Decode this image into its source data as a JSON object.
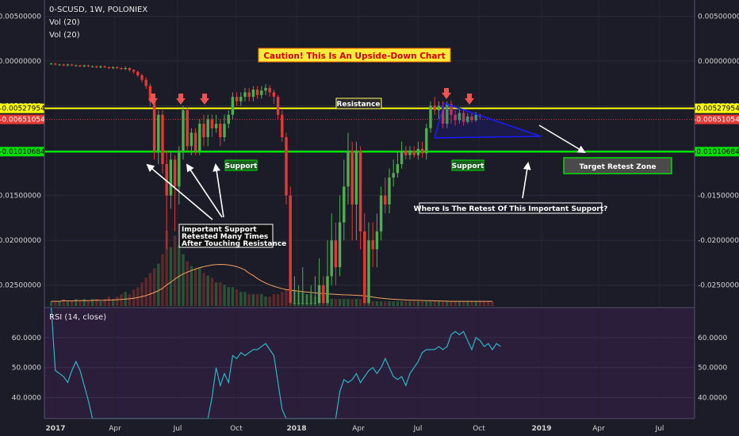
{
  "header": {
    "title": "0-SCUSD, 1W, POLONIEX",
    "indicator_1": "Vol (20)",
    "indicator_2": "Vol (20)"
  },
  "colors": {
    "background": "#1c1b28",
    "rsi_background": "#2a1e3a",
    "bull_candle": "#4caf50",
    "bear_candle": "#e53935",
    "resistance_line": "#ffff00",
    "support_line": "#00e000",
    "current_price_line": "#e53935",
    "rsi_line": "#29b6c8",
    "volume_ma": "#f4a261",
    "triangle": "#1a1aff",
    "marker_arrow": "#ef5350"
  },
  "chart_data": [
    {
      "type": "candlestick",
      "title": "0-SCUSD, 1W, POLONIEX",
      "x_ticks": [
        "2017",
        "Apr",
        "Jul",
        "Oct",
        "2018",
        "Apr",
        "Jul",
        "Oct",
        "2019",
        "Apr",
        "Jul"
      ],
      "y_ticks": [
        "0.00500000",
        "0.00000000",
        "-0.00500000",
        "-0.01000000",
        "-0.01500000",
        "-0.02000000",
        "-0.02500000"
      ],
      "ylim": [
        -0.0275,
        0.0068
      ],
      "price_labels": {
        "resistance": "-0.00527954",
        "current": "-0.00651054",
        "support": "-0.01010684"
      },
      "levels": {
        "resistance": -0.00527954,
        "current": -0.00651054,
        "support": -0.01010684
      },
      "candles": [
        {
          "o": -0.0003,
          "c": -0.0003,
          "h": -0.0002,
          "l": -0.0004
        },
        {
          "o": -0.0003,
          "c": -0.0004,
          "h": -0.0002,
          "l": -0.0005
        },
        {
          "o": -0.0004,
          "c": -0.0004,
          "h": -0.0003,
          "l": -0.0005
        },
        {
          "o": -0.0004,
          "c": -0.0005,
          "h": -0.0003,
          "l": -0.0006
        },
        {
          "o": -0.0005,
          "c": -0.0004,
          "h": -0.0003,
          "l": -0.0006
        },
        {
          "o": -0.0004,
          "c": -0.0005,
          "h": -0.0003,
          "l": -0.0006
        },
        {
          "o": -0.0005,
          "c": -0.0005,
          "h": -0.0004,
          "l": -0.0006
        },
        {
          "o": -0.0005,
          "c": -0.0006,
          "h": -0.0004,
          "l": -0.0007
        },
        {
          "o": -0.0006,
          "c": -0.0005,
          "h": -0.0004,
          "l": -0.0007
        },
        {
          "o": -0.0005,
          "c": -0.0006,
          "h": -0.0004,
          "l": -0.0007
        },
        {
          "o": -0.0006,
          "c": -0.0006,
          "h": -0.0005,
          "l": -0.0007
        },
        {
          "o": -0.0006,
          "c": -0.0007,
          "h": -0.0005,
          "l": -0.0008
        },
        {
          "o": -0.0007,
          "c": -0.0006,
          "h": -0.0005,
          "l": -0.0008
        },
        {
          "o": -0.0006,
          "c": -0.0007,
          "h": -0.0005,
          "l": -0.0008
        },
        {
          "o": -0.0007,
          "c": -0.0008,
          "h": -0.0006,
          "l": -0.0009
        },
        {
          "o": -0.0008,
          "c": -0.0007,
          "h": -0.0006,
          "l": -0.0009
        },
        {
          "o": -0.0007,
          "c": -0.0008,
          "h": -0.0006,
          "l": -0.0009
        },
        {
          "o": -0.0008,
          "c": -0.0009,
          "h": -0.0007,
          "l": -0.001
        },
        {
          "o": -0.0009,
          "c": -0.0008,
          "h": -0.0006,
          "l": -0.001
        },
        {
          "o": -0.0008,
          "c": -0.001,
          "h": -0.0007,
          "l": -0.0012
        },
        {
          "o": -0.001,
          "c": -0.0012,
          "h": -0.0009,
          "l": -0.0014
        },
        {
          "o": -0.0012,
          "c": -0.0016,
          "h": -0.0011,
          "l": -0.0018
        },
        {
          "o": -0.0016,
          "c": -0.0021,
          "h": -0.0014,
          "l": -0.0024
        },
        {
          "o": -0.0021,
          "c": -0.0028,
          "h": -0.0018,
          "l": -0.0031
        },
        {
          "o": -0.0028,
          "c": -0.0045,
          "h": -0.0025,
          "l": -0.005
        },
        {
          "o": -0.0045,
          "c": -0.01,
          "h": -0.004,
          "l": -0.011
        },
        {
          "o": -0.01,
          "c": -0.006,
          "h": -0.0055,
          "l": -0.0115
        },
        {
          "o": -0.006,
          "c": -0.0115,
          "h": -0.0055,
          "l": -0.0125
        },
        {
          "o": -0.0115,
          "c": -0.015,
          "h": -0.01,
          "l": -0.021
        },
        {
          "o": -0.015,
          "c": -0.011,
          "h": -0.01,
          "l": -0.0165
        },
        {
          "o": -0.011,
          "c": -0.014,
          "h": -0.0105,
          "l": -0.019
        },
        {
          "o": -0.014,
          "c": -0.01,
          "h": -0.0095,
          "l": -0.016
        },
        {
          "o": -0.01,
          "c": -0.0055,
          "h": -0.005,
          "l": -0.011
        },
        {
          "o": -0.0055,
          "c": -0.0095,
          "h": -0.0052,
          "l": -0.01
        },
        {
          "o": -0.0095,
          "c": -0.008,
          "h": -0.0075,
          "l": -0.0105
        },
        {
          "o": -0.008,
          "c": -0.01,
          "h": -0.0075,
          "l": -0.0105
        },
        {
          "o": -0.01,
          "c": -0.007,
          "h": -0.0065,
          "l": -0.0105
        },
        {
          "o": -0.007,
          "c": -0.0085,
          "h": -0.006,
          "l": -0.0095
        },
        {
          "o": -0.0085,
          "c": -0.0065,
          "h": -0.006,
          "l": -0.0095
        },
        {
          "o": -0.0065,
          "c": -0.0075,
          "h": -0.006,
          "l": -0.0085
        },
        {
          "o": -0.0075,
          "c": -0.007,
          "h": -0.006,
          "l": -0.008
        },
        {
          "o": -0.007,
          "c": -0.0085,
          "h": -0.0065,
          "l": -0.0095
        },
        {
          "o": -0.0085,
          "c": -0.007,
          "h": -0.006,
          "l": -0.009
        },
        {
          "o": -0.007,
          "c": -0.006,
          "h": -0.0055,
          "l": -0.0075
        },
        {
          "o": -0.006,
          "c": -0.004,
          "h": -0.0035,
          "l": -0.0065
        },
        {
          "o": -0.004,
          "c": -0.0045,
          "h": -0.0035,
          "l": -0.005
        },
        {
          "o": -0.0045,
          "c": -0.004,
          "h": -0.0035,
          "l": -0.005
        },
        {
          "o": -0.004,
          "c": -0.0035,
          "h": -0.003,
          "l": -0.0045
        },
        {
          "o": -0.0035,
          "c": -0.004,
          "h": -0.003,
          "l": -0.0045
        },
        {
          "o": -0.004,
          "c": -0.0032,
          "h": -0.0028,
          "l": -0.0045
        },
        {
          "o": -0.0032,
          "c": -0.0038,
          "h": -0.0028,
          "l": -0.0042
        },
        {
          "o": -0.0038,
          "c": -0.0033,
          "h": -0.0028,
          "l": -0.0042
        },
        {
          "o": -0.0033,
          "c": -0.003,
          "h": -0.0026,
          "l": -0.0038
        },
        {
          "o": -0.003,
          "c": -0.0035,
          "h": -0.0027,
          "l": -0.004
        },
        {
          "o": -0.0035,
          "c": -0.004,
          "h": -0.0032,
          "l": -0.0048
        },
        {
          "o": -0.004,
          "c": -0.006,
          "h": -0.0038,
          "l": -0.0065
        },
        {
          "o": -0.006,
          "c": -0.0085,
          "h": -0.0055,
          "l": -0.009
        },
        {
          "o": -0.0085,
          "c": -0.015,
          "h": -0.008,
          "l": -0.016
        },
        {
          "o": -0.015,
          "c": -0.027,
          "h": -0.014,
          "l": -0.027
        },
        {
          "o": -0.027,
          "c": -0.027,
          "h": -0.024,
          "l": -0.027
        },
        {
          "o": -0.027,
          "c": -0.027,
          "h": -0.025,
          "l": -0.027
        },
        {
          "o": -0.027,
          "c": -0.027,
          "h": -0.023,
          "l": -0.027
        },
        {
          "o": -0.027,
          "c": -0.027,
          "h": -0.026,
          "l": -0.027
        },
        {
          "o": -0.027,
          "c": -0.027,
          "h": -0.025,
          "l": -0.027
        },
        {
          "o": -0.027,
          "c": -0.027,
          "h": -0.024,
          "l": -0.027
        },
        {
          "o": -0.027,
          "c": -0.025,
          "h": -0.022,
          "l": -0.027
        },
        {
          "o": -0.025,
          "c": -0.027,
          "h": -0.024,
          "l": -0.027
        },
        {
          "o": -0.027,
          "c": -0.024,
          "h": -0.02,
          "l": -0.027
        },
        {
          "o": -0.024,
          "c": -0.02,
          "h": -0.017,
          "l": -0.025
        },
        {
          "o": -0.02,
          "c": -0.023,
          "h": -0.018,
          "l": -0.025
        },
        {
          "o": -0.023,
          "c": -0.018,
          "h": -0.015,
          "l": -0.024
        },
        {
          "o": -0.018,
          "c": -0.014,
          "h": -0.011,
          "l": -0.02
        },
        {
          "o": -0.014,
          "c": -0.01,
          "h": -0.008,
          "l": -0.016
        },
        {
          "o": -0.01,
          "c": -0.016,
          "h": -0.009,
          "l": -0.02
        },
        {
          "o": -0.016,
          "c": -0.01,
          "h": -0.009,
          "l": -0.02
        },
        {
          "o": -0.01,
          "c": -0.019,
          "h": -0.0095,
          "l": -0.021
        },
        {
          "o": -0.019,
          "c": -0.027,
          "h": -0.017,
          "l": -0.027
        },
        {
          "o": -0.027,
          "c": -0.02,
          "h": -0.018,
          "l": -0.027
        },
        {
          "o": -0.02,
          "c": -0.021,
          "h": -0.018,
          "l": -0.023
        },
        {
          "o": -0.021,
          "c": -0.019,
          "h": -0.017,
          "l": -0.023
        },
        {
          "o": -0.019,
          "c": -0.015,
          "h": -0.014,
          "l": -0.02
        },
        {
          "o": -0.015,
          "c": -0.016,
          "h": -0.013,
          "l": -0.017
        },
        {
          "o": -0.016,
          "c": -0.013,
          "h": -0.012,
          "l": -0.017
        },
        {
          "o": -0.013,
          "c": -0.0125,
          "h": -0.011,
          "l": -0.014
        },
        {
          "o": -0.0125,
          "c": -0.0115,
          "h": -0.01,
          "l": -0.013
        },
        {
          "o": -0.0115,
          "c": -0.01,
          "h": -0.009,
          "l": -0.012
        },
        {
          "o": -0.01,
          "c": -0.0105,
          "h": -0.0095,
          "l": -0.011
        },
        {
          "o": -0.0105,
          "c": -0.01,
          "h": -0.0095,
          "l": -0.011
        },
        {
          "o": -0.01,
          "c": -0.0105,
          "h": -0.0095,
          "l": -0.0108
        },
        {
          "o": -0.0105,
          "c": -0.0098,
          "h": -0.009,
          "l": -0.011
        },
        {
          "o": -0.0098,
          "c": -0.0103,
          "h": -0.009,
          "l": -0.0108
        },
        {
          "o": -0.0103,
          "c": -0.0075,
          "h": -0.007,
          "l": -0.011
        },
        {
          "o": -0.0075,
          "c": -0.005,
          "h": -0.0045,
          "l": -0.008
        },
        {
          "o": -0.005,
          "c": -0.0055,
          "h": -0.004,
          "l": -0.006
        },
        {
          "o": -0.0055,
          "c": -0.005,
          "h": -0.0045,
          "l": -0.0065
        },
        {
          "o": -0.005,
          "c": -0.007,
          "h": -0.0045,
          "l": -0.0075
        },
        {
          "o": -0.007,
          "c": -0.0048,
          "h": -0.0045,
          "l": -0.0075
        },
        {
          "o": -0.0048,
          "c": -0.006,
          "h": -0.0044,
          "l": -0.007
        },
        {
          "o": -0.006,
          "c": -0.0066,
          "h": -0.0055,
          "l": -0.0072
        },
        {
          "o": -0.0066,
          "c": -0.0058,
          "h": -0.0054,
          "l": -0.007
        },
        {
          "o": -0.0058,
          "c": -0.0068,
          "h": -0.0055,
          "l": -0.0072
        },
        {
          "o": -0.0068,
          "c": -0.0062,
          "h": -0.0058,
          "l": -0.007
        },
        {
          "o": -0.0062,
          "c": -0.0066,
          "h": -0.0058,
          "l": -0.0069
        },
        {
          "o": -0.0066,
          "c": -0.006,
          "h": -0.0057,
          "l": -0.0068
        },
        {
          "o": -0.006,
          "c": -0.0062,
          "h": -0.0059,
          "l": -0.0065
        }
      ],
      "volume": [
        0.2,
        0.2,
        0.2,
        0.3,
        0.2,
        0.2,
        0.3,
        0.2,
        0.3,
        0.2,
        0.3,
        0.3,
        0.2,
        0.3,
        0.4,
        0.3,
        0.4,
        0.5,
        0.6,
        0.5,
        0.7,
        0.8,
        1.0,
        1.2,
        1.4,
        1.6,
        1.8,
        2.2,
        3.2,
        2.5,
        3.0,
        2.6,
        2.2,
        1.9,
        1.7,
        1.6,
        1.6,
        1.4,
        1.3,
        1.2,
        1.0,
        1.0,
        0.9,
        0.8,
        0.8,
        0.7,
        0.6,
        0.6,
        0.5,
        0.5,
        0.5,
        0.5,
        0.4,
        0.4,
        0.5,
        0.5,
        0.6,
        0.7,
        0.8,
        0.7,
        0.6,
        0.6,
        0.5,
        0.5,
        0.4,
        0.4,
        0.4,
        0.3,
        0.3,
        0.3,
        0.3,
        0.3,
        0.3,
        0.3,
        0.3,
        0.3,
        0.3,
        0.3,
        0.2,
        0.2,
        0.2,
        0.2,
        0.2,
        0.2,
        0.2,
        0.2,
        0.2,
        0.2,
        0.2,
        0.2,
        0.2,
        0.2,
        0.2,
        0.2,
        0.2,
        0.2,
        0.2,
        0.2,
        0.2,
        0.2,
        0.2,
        0.2,
        0.2,
        0.2,
        0.2,
        0.2,
        0.2,
        0.2
      ],
      "annotations": {
        "caution": "Caution! This Is An Upside-Down Chart",
        "resistance": "Resistance",
        "support_left": "Support",
        "support_right": "Support",
        "target": "Target Retest Zone",
        "retest_question": "Where Is The Retest Of This Important Support?",
        "important_support_lines": [
          "Important Support",
          "Retested Many Times",
          "After Touching Resistance"
        ]
      }
    },
    {
      "type": "line",
      "title": "RSI (14, close)",
      "y_ticks": [
        "60.0000",
        "50.0000",
        "40.0000"
      ],
      "ylim": [
        33,
        70
      ],
      "rsi_values": [
        70,
        49,
        48,
        47,
        45,
        49,
        52,
        49,
        44,
        39,
        28,
        28,
        30,
        30,
        30,
        30,
        30,
        30,
        30,
        30,
        30,
        30,
        30,
        30,
        30,
        30,
        30,
        30,
        30,
        30,
        30,
        30,
        30,
        30,
        30,
        30,
        30,
        30,
        30,
        40,
        50,
        44,
        48,
        45,
        54,
        53,
        55,
        54,
        55,
        56,
        56,
        57,
        58,
        56,
        54,
        45,
        36,
        30,
        30,
        30,
        30,
        30,
        30,
        30,
        30,
        30,
        30,
        30,
        30,
        33,
        42,
        46,
        45,
        46,
        48,
        45,
        47,
        49,
        50,
        48,
        50,
        53,
        50,
        47,
        46,
        47,
        44,
        48,
        50,
        52,
        55,
        56,
        56,
        56,
        57,
        56,
        57,
        61,
        62,
        61,
        62,
        59,
        56,
        60,
        59,
        57,
        58,
        56,
        58,
        57
      ]
    }
  ]
}
